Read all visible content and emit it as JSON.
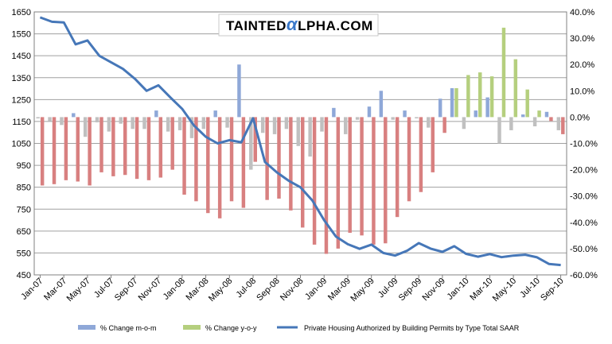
{
  "watermark": {
    "part1": "Tainted",
    "part2": "α",
    "part3": "lpha.com"
  },
  "colors": {
    "mom_bar": "#8fa8d8",
    "yoy_pos": "#b5cf7e",
    "yoy_neg": "#d88080",
    "mom_neg": "#c0c0c0",
    "line": "#4677b8",
    "grid": "#a0a0a0",
    "watermark_accent": "#3a78c9"
  },
  "chart_data": {
    "type": "bar+line",
    "title": "",
    "left_axis": {
      "min": 450,
      "max": 1650,
      "ticks": [
        "450",
        "550",
        "650",
        "750",
        "850",
        "950",
        "1050",
        "1150",
        "1250",
        "1350",
        "1450",
        "1550",
        "1650"
      ]
    },
    "right_axis": {
      "min": -60,
      "max": 40,
      "ticks": [
        "-60.0%",
        "-50.0%",
        "-40.0%",
        "-30.0%",
        "-20.0%",
        "-10.0%",
        "0.0%",
        "10.0%",
        "20.0%",
        "30.0%",
        "40.0%"
      ]
    },
    "x_tick_labels": [
      "Jan-07",
      "Mar-07",
      "May-07",
      "Jul-07",
      "Sep-07",
      "Nov-07",
      "Jan-08",
      "Mar-08",
      "May-08",
      "Jul-08",
      "Sep-08",
      "Nov-08",
      "Jan-09",
      "Mar-09",
      "May-09",
      "Jul-09",
      "Sep-09",
      "Nov-09",
      "Jan-10",
      "Mar-10",
      "May-10",
      "Jul-10",
      "Sep-10"
    ],
    "categories": [
      "Jan-07",
      "Feb-07",
      "Mar-07",
      "Apr-07",
      "May-07",
      "Jun-07",
      "Jul-07",
      "Aug-07",
      "Sep-07",
      "Oct-07",
      "Nov-07",
      "Dec-07",
      "Jan-08",
      "Feb-08",
      "Mar-08",
      "Apr-08",
      "May-08",
      "Jun-08",
      "Jul-08",
      "Aug-08",
      "Sep-08",
      "Oct-08",
      "Nov-08",
      "Dec-08",
      "Jan-09",
      "Feb-09",
      "Mar-09",
      "Apr-09",
      "May-09",
      "Jun-09",
      "Jul-09",
      "Aug-09",
      "Sep-09",
      "Oct-09",
      "Nov-09",
      "Dec-09",
      "Jan-10",
      "Feb-10",
      "Mar-10",
      "Apr-10",
      "May-10",
      "Jun-10",
      "Jul-10",
      "Aug-10",
      "Sep-10"
    ],
    "series": [
      {
        "name": "% Change m-o-m",
        "axis": "right",
        "type": "bar",
        "values": [
          -0.5,
          -1.5,
          -3.0,
          1.5,
          -7.5,
          -2.0,
          -5.5,
          -2.5,
          -4.5,
          -4.5,
          2.5,
          -5.5,
          -5.0,
          -8.0,
          -4.5,
          2.5,
          -4.0,
          20.0,
          -20.0,
          -6.0,
          -6.5,
          -4.5,
          -11.0,
          -15.0,
          -5.5,
          3.5,
          -6.5,
          -1.0,
          4.0,
          10.0,
          -1.0,
          2.5,
          -0.5,
          -4.0,
          7.0,
          11.0,
          -4.5,
          2.5,
          7.5,
          -10.0,
          -5.0,
          1.0,
          -3.5,
          2.0,
          -5.0
        ]
      },
      {
        "name": "% Change y-o-y",
        "axis": "right",
        "type": "bar",
        "values": [
          -26.0,
          -25.5,
          -24.0,
          -24.5,
          -26.0,
          -21.0,
          -22.5,
          -22.0,
          -23.5,
          -24.0,
          -23.0,
          -20.0,
          -29.5,
          -32.0,
          -36.5,
          -38.5,
          -32.0,
          -34.5,
          -17.0,
          -31.5,
          -31.0,
          -35.5,
          -42.0,
          -48.5,
          -52.0,
          -50.0,
          -44.0,
          -45.0,
          -48.5,
          -48.0,
          -38.0,
          -32.0,
          -28.5,
          -21.0,
          -6.0,
          11.0,
          16.0,
          17.0,
          15.5,
          34.0,
          22.0,
          10.5,
          2.5,
          -1.5,
          -6.5
        ]
      },
      {
        "name": "Private Housing Authorized by Building Permits by Type Total SAAR",
        "axis": "left",
        "type": "line",
        "values": [
          1625,
          1605,
          1602,
          1502,
          1520,
          1450,
          1420,
          1390,
          1345,
          1290,
          1315,
          1260,
          1208,
          1132,
          1080,
          1050,
          1065,
          1055,
          1165,
          965,
          918,
          880,
          850,
          790,
          700,
          625,
          590,
          569,
          588,
          550,
          538,
          560,
          595,
          570,
          555,
          581,
          546,
          533,
          545,
          531,
          538,
          542,
          530,
          500,
          495
        ]
      }
    ],
    "legend": [
      "% Change m-o-m",
      "% Change y-o-y",
      "Private Housing Authorized by Building Permits by Type Total SAAR"
    ]
  }
}
